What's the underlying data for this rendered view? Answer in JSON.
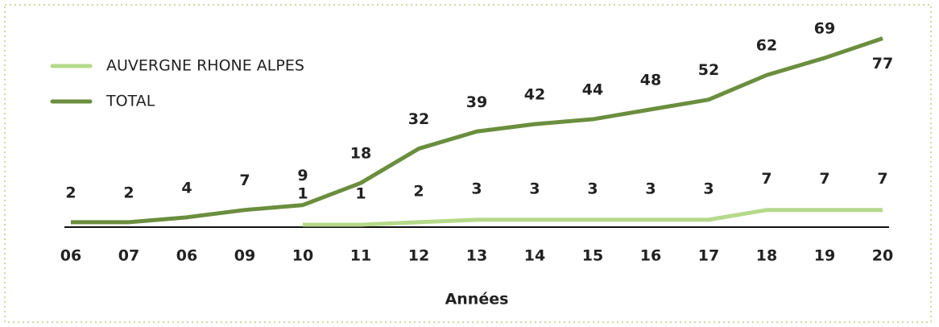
{
  "chart_data": {
    "type": "line",
    "categories": [
      "06",
      "07",
      "06",
      "09",
      "10",
      "11",
      "12",
      "13",
      "14",
      "15",
      "16",
      "17",
      "18",
      "19",
      "20"
    ],
    "series": [
      {
        "name": "AUVERGNE RHONE ALPES",
        "color": "#b5d98a",
        "values": [
          null,
          null,
          null,
          null,
          1,
          1,
          2,
          3,
          3,
          3,
          3,
          3,
          7,
          7,
          7
        ]
      },
      {
        "name": "TOTAL",
        "color": "#6b8e3e",
        "values": [
          2,
          2,
          4,
          7,
          9,
          18,
          32,
          39,
          42,
          44,
          48,
          52,
          62,
          69,
          77
        ]
      }
    ],
    "x_label": "Années",
    "ylim": [
      0,
      90
    ],
    "legend": "top-left"
  }
}
